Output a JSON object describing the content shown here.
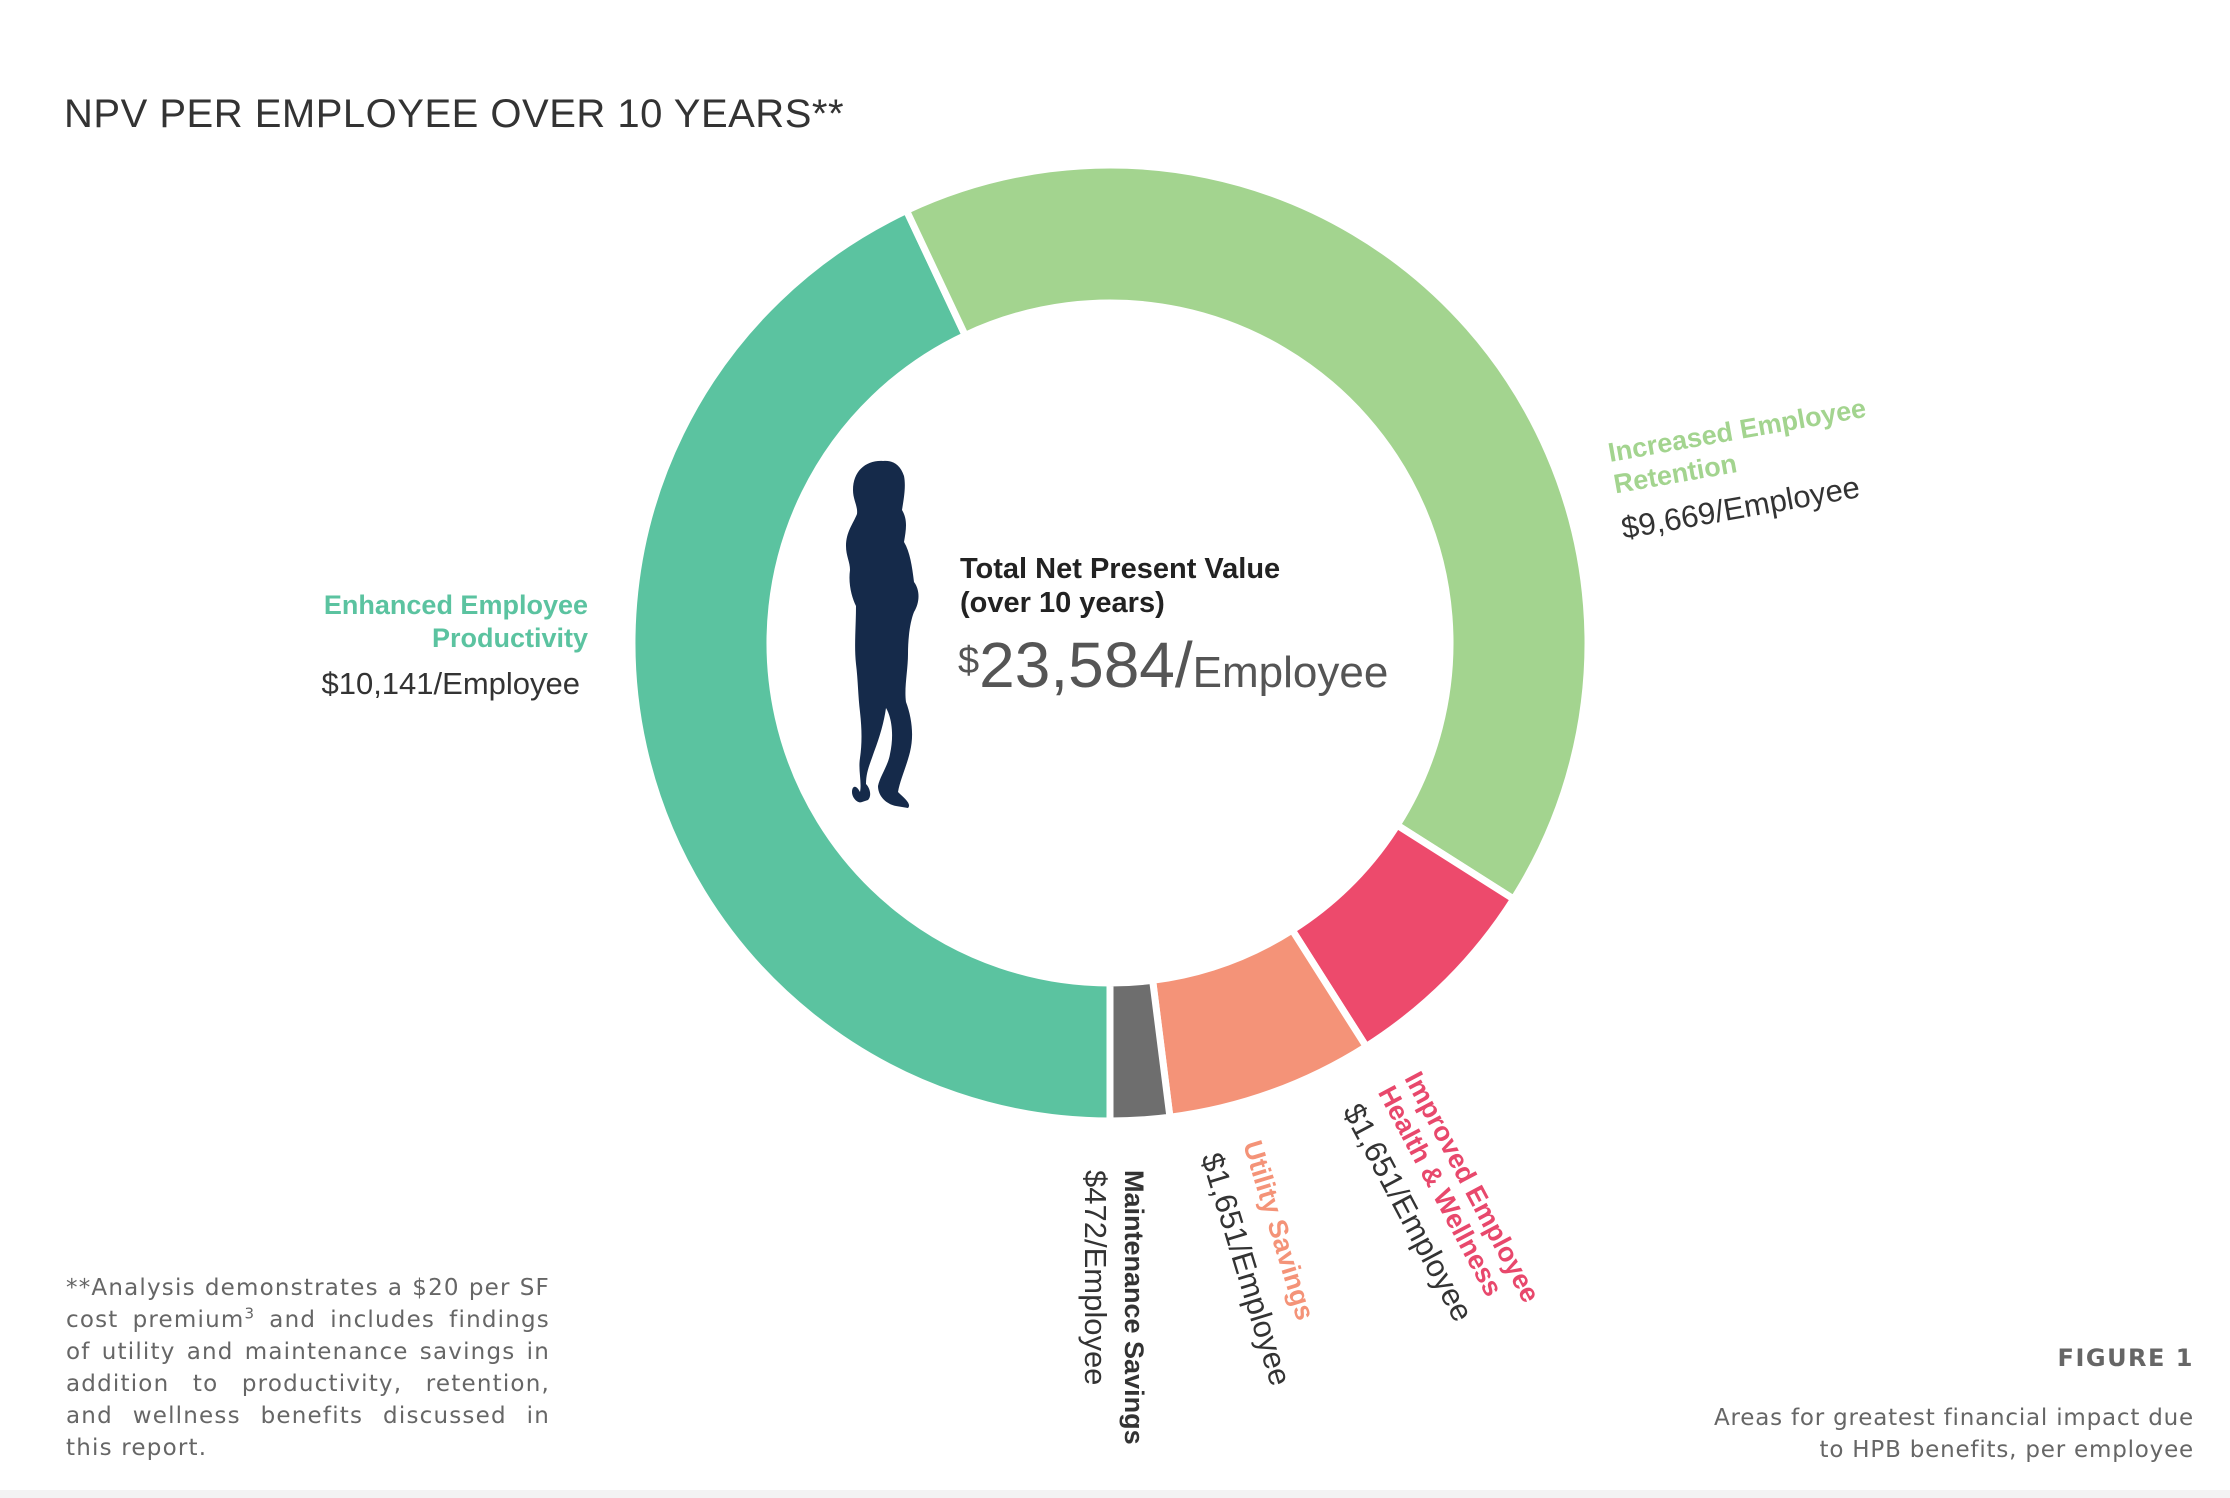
{
  "title": "NPV PER EMPLOYEE OVER 10 YEARS**",
  "center": {
    "label_line1": "Total Net Present Value",
    "label_line2": "(over 10 years)",
    "value_currency": "$",
    "value_number": "23,584/",
    "value_unit": "Employee",
    "silhouette_icon": "woman-silhouette-icon"
  },
  "chart_data": {
    "type": "pie",
    "style": "donut",
    "start_at": "bottom",
    "direction": "clockwise",
    "total": 23584,
    "series": [
      {
        "name": "Enhanced Employee Productivity",
        "label_lines": [
          "Enhanced Employee",
          "Productivity"
        ],
        "value": 10141,
        "value_label": "$10,141/Employee",
        "color": "#5bc3a0"
      },
      {
        "name": "Increased Employee Retention",
        "label_lines": [
          "Increased Employee",
          "Retention"
        ],
        "value": 9669,
        "value_label": "$9,669/Employee",
        "color": "#a3d48f"
      },
      {
        "name": "Improved Employee Health & Wellness",
        "label_lines": [
          "Improved Employee",
          "Health & Wellness"
        ],
        "value": 1651,
        "value_label": "$1,651/Employee",
        "color": "#ed4a6c"
      },
      {
        "name": "Utility Savings",
        "label_lines": [
          "Utility Savings"
        ],
        "value": 1651,
        "value_label": "$1,651/Employee",
        "color": "#f49378"
      },
      {
        "name": "Maintenance Savings",
        "label_lines": [
          "Maintenance Savings"
        ],
        "value": 472,
        "value_label": "$472/Employee",
        "color": "#6e6e6e"
      }
    ]
  },
  "label_colors": {
    "Enhanced Employee Productivity": "#5bc3a0",
    "Increased Employee Retention": "#a3d48f",
    "Improved Employee Health & Wellness": "#e8486c",
    "Utility Savings": "#f49378",
    "Maintenance Savings": "#333333",
    "value_text": "#333333",
    "center_text": "#222222",
    "center_value": "#555555",
    "silhouette": "#152a4a"
  },
  "footnote": {
    "text_before": "**Analysis demonstrates a $20 per SF cost premium",
    "superscript": "3",
    "text_after": " and includes findings of utility and maintenance savings in addition to productivity, retention, and wellness benefits discussed in this report."
  },
  "figure": {
    "label": "FIGURE 1",
    "caption_line1": "Areas for greatest financial impact due",
    "caption_line2": "to HPB benefits, per employee"
  }
}
